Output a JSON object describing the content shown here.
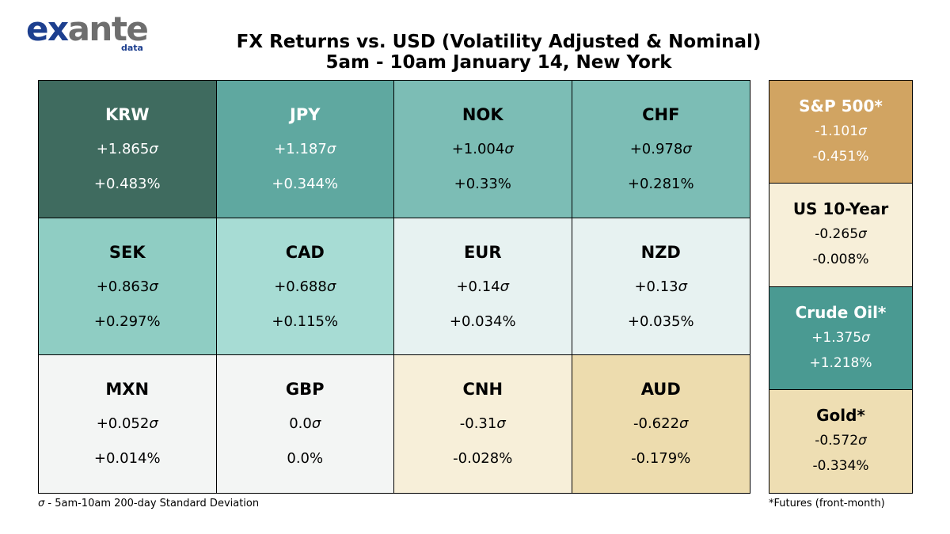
{
  "logo": {
    "part1": "ex",
    "part2": "ante",
    "sub": "data"
  },
  "title_line1": "FX Returns vs. USD (Volatility Adjusted & Nominal)",
  "title_line2": "5am - 10am January 14, New York",
  "footnote_left": "- 5am-10am 200-day Standard Deviation",
  "footnote_left_symbol": "σ",
  "footnote_right": "*Futures (front-month)",
  "chart_data": {
    "type": "heatmap",
    "title": "FX Returns vs. USD (Volatility Adjusted & Nominal)",
    "subtitle": "5am - 10am January 14, New York",
    "fx": [
      {
        "name": "KRW",
        "sigma": "+1.865",
        "pct": "+0.483%",
        "bg": "#3f6b5f",
        "fg": "#ffffff"
      },
      {
        "name": "JPY",
        "sigma": "+1.187",
        "pct": "+0.344%",
        "bg": "#5fa8a0",
        "fg": "#ffffff"
      },
      {
        "name": "NOK",
        "sigma": "+1.004",
        "pct": "+0.33%",
        "bg": "#7cbdb5",
        "fg": "#000000"
      },
      {
        "name": "CHF",
        "sigma": "+0.978",
        "pct": "+0.281%",
        "bg": "#7cbdb5",
        "fg": "#000000"
      },
      {
        "name": "SEK",
        "sigma": "+0.863",
        "pct": "+0.297%",
        "bg": "#8fcdc3",
        "fg": "#000000"
      },
      {
        "name": "CAD",
        "sigma": "+0.688",
        "pct": "+0.115%",
        "bg": "#a7dcd4",
        "fg": "#000000"
      },
      {
        "name": "EUR",
        "sigma": "+0.14",
        "pct": "+0.034%",
        "bg": "#e7f2f1",
        "fg": "#000000"
      },
      {
        "name": "NZD",
        "sigma": "+0.13",
        "pct": "+0.035%",
        "bg": "#e7f2f1",
        "fg": "#000000"
      },
      {
        "name": "MXN",
        "sigma": "+0.052",
        "pct": "+0.014%",
        "bg": "#f3f5f4",
        "fg": "#000000"
      },
      {
        "name": "GBP",
        "sigma": "0.0",
        "pct": "0.0%",
        "bg": "#f3f5f4",
        "fg": "#000000"
      },
      {
        "name": "CNH",
        "sigma": "-0.31",
        "pct": "-0.028%",
        "bg": "#f7efd9",
        "fg": "#000000"
      },
      {
        "name": "AUD",
        "sigma": "-0.622",
        "pct": "-0.179%",
        "bg": "#eddcae",
        "fg": "#000000"
      }
    ],
    "other": [
      {
        "name": "S&P 500*",
        "sigma": "-1.101",
        "pct": "-0.451%",
        "bg": "#d1a462",
        "fg": "#ffffff"
      },
      {
        "name": "US 10-Year",
        "sigma": "-0.265",
        "pct": "-0.008%",
        "bg": "#f7efd9",
        "fg": "#000000"
      },
      {
        "name": "Crude Oil*",
        "sigma": "+1.375",
        "pct": "+1.218%",
        "bg": "#4a9a92",
        "fg": "#ffffff"
      },
      {
        "name": "Gold*",
        "sigma": "-0.572",
        "pct": "-0.334%",
        "bg": "#eedeb3",
        "fg": "#000000"
      }
    ],
    "sigma_symbol": "σ"
  }
}
